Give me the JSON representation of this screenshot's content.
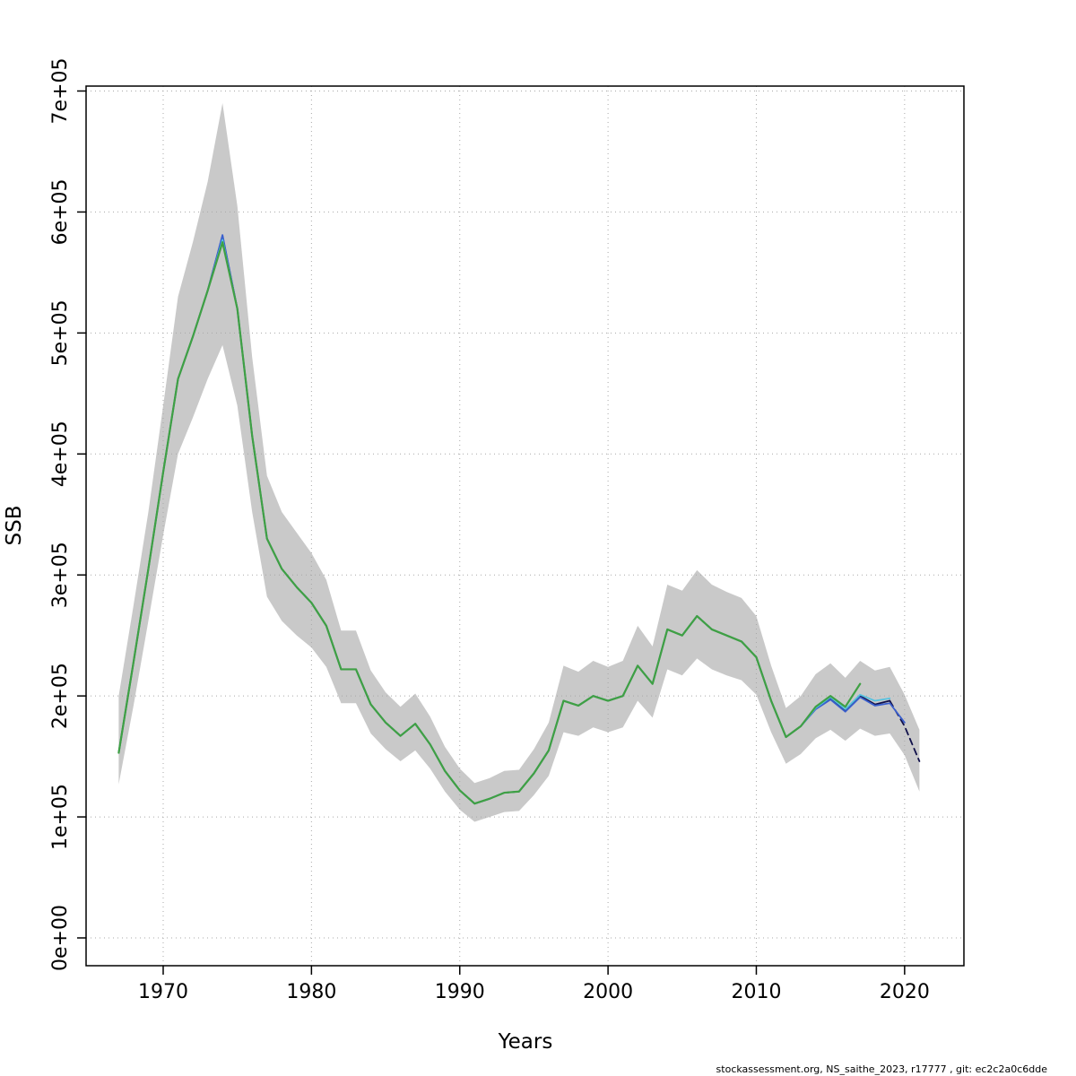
{
  "page": {
    "background": "#ffffff"
  },
  "footer": {
    "text": "stockassessment.org, NS_saithe_2023, r17777 , git: ec2c2a0c6dde"
  },
  "chart_data": {
    "type": "line",
    "title": "",
    "xlabel": "Years",
    "ylabel": "SSB",
    "xlim": [
      1964.8,
      2024.0
    ],
    "ylim": [
      0,
      700000
    ],
    "grid": true,
    "grid_color": "#a8a8a8",
    "xticks": [
      1970,
      1980,
      1990,
      2000,
      2010,
      2020
    ],
    "ytick_values": [
      0,
      100000,
      200000,
      300000,
      400000,
      500000,
      600000,
      700000
    ],
    "ytick_labels": [
      "0e+00",
      "1e+05",
      "2e+05",
      "3e+05",
      "4e+05",
      "5e+05",
      "6e+05",
      "7e+05"
    ],
    "start_year": 1967,
    "band": {
      "name": "confidence-band",
      "color": "#c9c9c9",
      "lower": [
        127000,
        192000,
        262000,
        333000,
        400000,
        430000,
        462000,
        490000,
        440000,
        352000,
        282000,
        262000,
        250000,
        240000,
        224000,
        194000,
        194000,
        169000,
        156000,
        146000,
        155000,
        140000,
        121000,
        106000,
        96000,
        100000,
        104000,
        105000,
        118000,
        134000,
        170000,
        167000,
        174000,
        170000,
        174000,
        196000,
        182000,
        222000,
        217000,
        231000,
        222000,
        217000,
        213000,
        201000,
        170000,
        144000,
        152000,
        165000,
        172000,
        163000,
        173000,
        167000,
        169000,
        151000,
        121000
      ],
      "upper": [
        200000,
        275000,
        352000,
        440000,
        530000,
        575000,
        625000,
        690000,
        605000,
        480000,
        382000,
        352000,
        335000,
        318000,
        296000,
        254000,
        254000,
        221000,
        203000,
        191000,
        202000,
        183000,
        158000,
        140000,
        128000,
        132000,
        138000,
        139000,
        156000,
        178000,
        225000,
        220000,
        229000,
        224000,
        229000,
        258000,
        241000,
        292000,
        287000,
        304000,
        292000,
        286000,
        281000,
        266000,
        225000,
        190000,
        200000,
        218000,
        227000,
        215000,
        229000,
        221000,
        224000,
        201000,
        172000
      ]
    },
    "series": [
      {
        "name": "current-assessment",
        "color": "#10104a",
        "width": 1.8,
        "dash_from_year": 2019,
        "values": [
          153000,
          228000,
          305000,
          385000,
          462000,
          497000,
          535000,
          580000,
          520000,
          415000,
          330000,
          305000,
          290000,
          277000,
          258000,
          222000,
          222000,
          193000,
          178000,
          167000,
          177000,
          160000,
          138000,
          122000,
          111000,
          115000,
          120000,
          121000,
          136000,
          155000,
          196000,
          192000,
          200000,
          196000,
          200000,
          225000,
          210000,
          255000,
          250000,
          266000,
          255000,
          250000,
          245000,
          232000,
          196000,
          166000,
          175000,
          190000,
          198000,
          188000,
          200000,
          193000,
          196000,
          175000,
          146000
        ]
      },
      {
        "name": "retro-run-blue",
        "color": "#3a5fcd",
        "width": 1.8,
        "values": [
          153000,
          228000,
          305000,
          385000,
          462000,
          497000,
          535000,
          581000,
          520000,
          415000,
          330000,
          305000,
          290000,
          277000,
          258000,
          222000,
          222000,
          193000,
          178000,
          167000,
          177000,
          160000,
          138000,
          122000,
          111000,
          115000,
          120000,
          121000,
          136000,
          155000,
          196000,
          192000,
          200000,
          196000,
          200000,
          225000,
          210000,
          255000,
          250000,
          266000,
          255000,
          250000,
          245000,
          232000,
          196000,
          166000,
          175000,
          189000,
          197000,
          187000,
          199000,
          192000,
          194000,
          178000
        ]
      },
      {
        "name": "retro-run-cyan",
        "color": "#56c2e0",
        "width": 1.8,
        "values": [
          153000,
          228000,
          305000,
          385000,
          462000,
          497000,
          535000,
          577000,
          520000,
          415000,
          330000,
          305000,
          290000,
          277000,
          258000,
          222000,
          222000,
          193000,
          178000,
          167000,
          177000,
          160000,
          138000,
          122000,
          111000,
          115000,
          120000,
          121000,
          136000,
          155000,
          196000,
          192000,
          200000,
          196000,
          200000,
          225000,
          210000,
          255000,
          250000,
          266000,
          255000,
          250000,
          245000,
          232000,
          196000,
          166000,
          175000,
          190000,
          199000,
          189000,
          201000,
          196000,
          198000
        ]
      },
      {
        "name": "retro-run-green",
        "color": "#3fa044",
        "width": 2.2,
        "values": [
          153000,
          228000,
          305000,
          385000,
          462000,
          497000,
          535000,
          575000,
          520000,
          415000,
          330000,
          305000,
          290000,
          277000,
          258000,
          222000,
          222000,
          193000,
          178000,
          167000,
          177000,
          160000,
          138000,
          122000,
          111000,
          115000,
          120000,
          121000,
          136000,
          155000,
          196000,
          192000,
          200000,
          196000,
          200000,
          225000,
          210000,
          255000,
          250000,
          266000,
          255000,
          250000,
          245000,
          232000,
          196000,
          166000,
          175000,
          191000,
          200000,
          191000,
          210000
        ]
      }
    ]
  }
}
